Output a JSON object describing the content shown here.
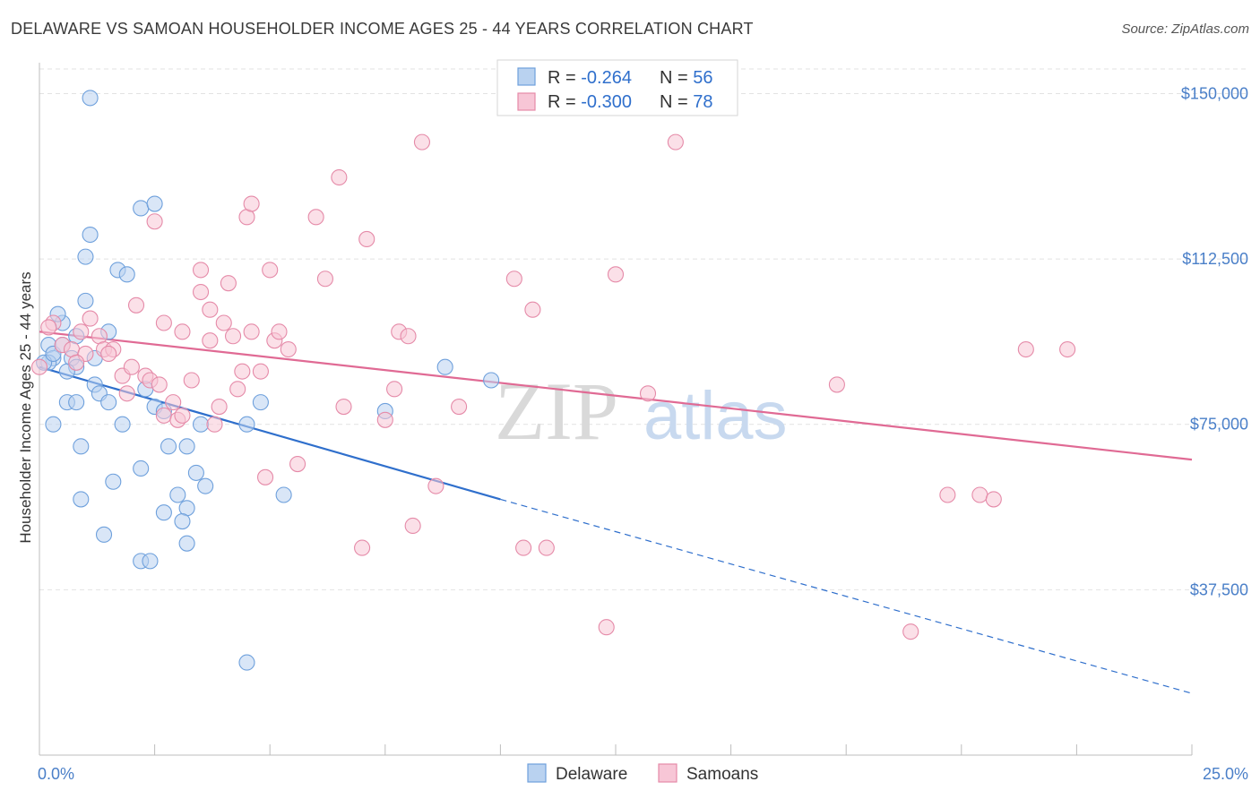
{
  "title": "DELAWARE VS SAMOAN HOUSEHOLDER INCOME AGES 25 - 44 YEARS CORRELATION CHART",
  "source": "Source: ZipAtlas.com",
  "watermark": {
    "zip": "ZIP",
    "atlas": "atlas"
  },
  "chart_data": {
    "type": "scatter",
    "ylabel": "Householder Income Ages 25 - 44 years",
    "xlim": [
      0,
      25
    ],
    "ylim": [
      0,
      157000
    ],
    "x_tick_labels": [
      "0.0%",
      "25.0%"
    ],
    "x_minor_ticks": [
      0,
      2.5,
      5,
      7.5,
      10,
      12.5,
      15,
      17.5,
      20,
      22.5,
      25
    ],
    "y_ticks": [
      37500,
      75000,
      112500,
      150000
    ],
    "y_tick_labels": [
      "$37,500",
      "$75,000",
      "$112,500",
      "$150,000"
    ],
    "grid": true,
    "legend": {
      "placement": "top-center",
      "rows": [
        {
          "r_label": "R = ",
          "r_value": "-0.264",
          "n_label": "N = ",
          "n_value": "56"
        },
        {
          "r_label": "R = ",
          "r_value": "-0.300",
          "n_label": "N = ",
          "n_value": "78"
        }
      ]
    },
    "series": [
      {
        "name": "Delaware",
        "color": "#6ea0dc",
        "fill": "#b9d2f0",
        "line_color": "#2f6fcc",
        "trend": {
          "x0": 0,
          "y0": 88000,
          "x1": 10,
          "y1": 58000,
          "dash_to_x": 25,
          "dash_to_y": 14000
        },
        "points": [
          [
            1.1,
            149000
          ],
          [
            0.2,
            93000
          ],
          [
            0.3,
            90000
          ],
          [
            0.2,
            89000
          ],
          [
            0.5,
            98000
          ],
          [
            0.4,
            100000
          ],
          [
            1.0,
            113000
          ],
          [
            1.7,
            110000
          ],
          [
            1.9,
            109000
          ],
          [
            1.1,
            118000
          ],
          [
            2.2,
            124000
          ],
          [
            2.5,
            125000
          ],
          [
            1.0,
            103000
          ],
          [
            0.8,
            95000
          ],
          [
            1.5,
            96000
          ],
          [
            0.7,
            90000
          ],
          [
            0.8,
            88000
          ],
          [
            0.6,
            87000
          ],
          [
            1.2,
            84000
          ],
          [
            1.3,
            82000
          ],
          [
            1.5,
            80000
          ],
          [
            0.6,
            80000
          ],
          [
            0.8,
            80000
          ],
          [
            1.8,
            75000
          ],
          [
            2.3,
            83000
          ],
          [
            2.5,
            79000
          ],
          [
            2.7,
            78000
          ],
          [
            2.8,
            70000
          ],
          [
            3.2,
            70000
          ],
          [
            3.5,
            75000
          ],
          [
            3.4,
            64000
          ],
          [
            3.6,
            61000
          ],
          [
            2.2,
            65000
          ],
          [
            1.6,
            62000
          ],
          [
            0.9,
            70000
          ],
          [
            0.3,
            75000
          ],
          [
            0.9,
            58000
          ],
          [
            1.4,
            50000
          ],
          [
            2.7,
            55000
          ],
          [
            3.0,
            59000
          ],
          [
            3.2,
            56000
          ],
          [
            3.1,
            53000
          ],
          [
            3.2,
            48000
          ],
          [
            2.2,
            44000
          ],
          [
            2.4,
            44000
          ],
          [
            4.5,
            75000
          ],
          [
            4.8,
            80000
          ],
          [
            5.3,
            59000
          ],
          [
            7.5,
            78000
          ],
          [
            8.8,
            88000
          ],
          [
            9.8,
            85000
          ],
          [
            4.5,
            21000
          ],
          [
            0.1,
            89000
          ],
          [
            0.3,
            91000
          ],
          [
            0.5,
            93000
          ],
          [
            1.2,
            90000
          ]
        ]
      },
      {
        "name": "Samoans",
        "color": "#e58aa8",
        "fill": "#f7c6d6",
        "line_color": "#e06a94",
        "trend": {
          "x0": 0,
          "y0": 96000,
          "x1": 25,
          "y1": 67000
        },
        "points": [
          [
            0.0,
            88000
          ],
          [
            0.3,
            98000
          ],
          [
            0.5,
            93000
          ],
          [
            0.7,
            92000
          ],
          [
            0.9,
            96000
          ],
          [
            1.0,
            91000
          ],
          [
            1.1,
            99000
          ],
          [
            1.3,
            95000
          ],
          [
            1.4,
            92000
          ],
          [
            1.6,
            92000
          ],
          [
            1.8,
            86000
          ],
          [
            1.9,
            82000
          ],
          [
            2.0,
            88000
          ],
          [
            2.1,
            102000
          ],
          [
            2.3,
            86000
          ],
          [
            2.4,
            85000
          ],
          [
            2.5,
            121000
          ],
          [
            2.7,
            77000
          ],
          [
            2.7,
            98000
          ],
          [
            2.9,
            80000
          ],
          [
            3.0,
            76000
          ],
          [
            3.1,
            77000
          ],
          [
            3.1,
            96000
          ],
          [
            3.3,
            85000
          ],
          [
            3.5,
            110000
          ],
          [
            3.5,
            105000
          ],
          [
            3.7,
            101000
          ],
          [
            3.7,
            94000
          ],
          [
            3.8,
            75000
          ],
          [
            3.9,
            79000
          ],
          [
            4.0,
            98000
          ],
          [
            4.1,
            107000
          ],
          [
            4.2,
            95000
          ],
          [
            4.3,
            83000
          ],
          [
            4.4,
            87000
          ],
          [
            4.5,
            122000
          ],
          [
            4.6,
            125000
          ],
          [
            4.8,
            87000
          ],
          [
            4.9,
            63000
          ],
          [
            5.0,
            110000
          ],
          [
            5.1,
            94000
          ],
          [
            5.2,
            96000
          ],
          [
            5.4,
            92000
          ],
          [
            5.6,
            66000
          ],
          [
            6.0,
            122000
          ],
          [
            6.2,
            108000
          ],
          [
            6.5,
            131000
          ],
          [
            6.6,
            79000
          ],
          [
            7.0,
            47000
          ],
          [
            7.1,
            117000
          ],
          [
            7.5,
            76000
          ],
          [
            7.7,
            83000
          ],
          [
            7.8,
            96000
          ],
          [
            8.0,
            95000
          ],
          [
            8.1,
            52000
          ],
          [
            8.3,
            139000
          ],
          [
            8.6,
            61000
          ],
          [
            9.1,
            79000
          ],
          [
            10.3,
            108000
          ],
          [
            10.5,
            47000
          ],
          [
            10.7,
            101000
          ],
          [
            11.0,
            47000
          ],
          [
            12.3,
            29000
          ],
          [
            12.5,
            109000
          ],
          [
            13.2,
            82000
          ],
          [
            13.8,
            139000
          ],
          [
            17.3,
            84000
          ],
          [
            18.9,
            28000
          ],
          [
            19.7,
            59000
          ],
          [
            20.4,
            59000
          ],
          [
            20.7,
            58000
          ],
          [
            21.4,
            92000
          ],
          [
            22.3,
            92000
          ],
          [
            4.6,
            96000
          ],
          [
            2.6,
            84000
          ],
          [
            1.5,
            91000
          ],
          [
            0.8,
            89000
          ],
          [
            0.2,
            97000
          ]
        ]
      }
    ]
  }
}
